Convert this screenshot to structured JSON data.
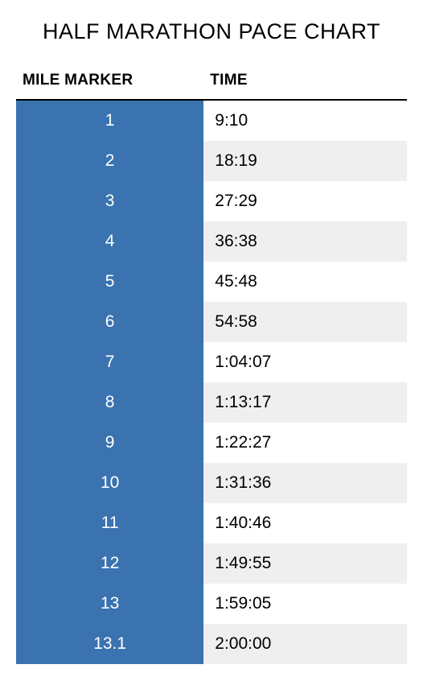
{
  "title": "HALF MARATHON PACE CHART",
  "columns": [
    "MILE MARKER",
    "TIME"
  ],
  "colors": {
    "marker_bg": "#3a73b0",
    "row_even_bg": "#ffffff",
    "row_odd_bg": "#efefef",
    "header_border": "#000000",
    "marker_text": "#ffffff",
    "time_text": "#000000",
    "background": "#ffffff"
  },
  "typography": {
    "title_fontsize": 27,
    "header_fontsize": 19,
    "cell_fontsize": 21,
    "marker_fontweight": 300,
    "time_fontweight": 400,
    "header_fontweight": 800
  },
  "layout": {
    "marker_col_width_pct": 48,
    "row_padding_v": 13,
    "marker_align": "center",
    "time_align": "left"
  },
  "rows": [
    {
      "marker": "1",
      "time": "9:10"
    },
    {
      "marker": "2",
      "time": "18:19"
    },
    {
      "marker": "3",
      "time": "27:29"
    },
    {
      "marker": "4",
      "time": "36:38"
    },
    {
      "marker": "5",
      "time": "45:48"
    },
    {
      "marker": "6",
      "time": "54:58"
    },
    {
      "marker": "7",
      "time": "1:04:07"
    },
    {
      "marker": "8",
      "time": "1:13:17"
    },
    {
      "marker": "9",
      "time": "1:22:27"
    },
    {
      "marker": "10",
      "time": "1:31:36"
    },
    {
      "marker": "11",
      "time": "1:40:46"
    },
    {
      "marker": "12",
      "time": "1:49:55"
    },
    {
      "marker": "13",
      "time": "1:59:05"
    },
    {
      "marker": "13.1",
      "time": "2:00:00"
    }
  ]
}
